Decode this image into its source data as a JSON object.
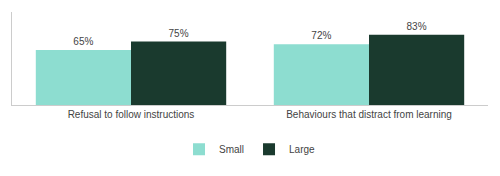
{
  "chart_data": {
    "type": "bar",
    "categories": [
      "Refusal to follow instructions",
      "Behaviours that distract from learning"
    ],
    "series": [
      {
        "name": "Small",
        "color": "#8dddd0",
        "values": [
          65,
          72
        ],
        "value_labels": [
          "65%",
          "72%"
        ]
      },
      {
        "name": "Large",
        "color": "#1a3a2e",
        "values": [
          75,
          83
        ],
        "value_labels": [
          "75%",
          "83%"
        ]
      }
    ],
    "ylim": [
      0,
      110
    ],
    "grid": false,
    "legend": "bottom",
    "data_labels": true,
    "tick_labels": "x"
  }
}
